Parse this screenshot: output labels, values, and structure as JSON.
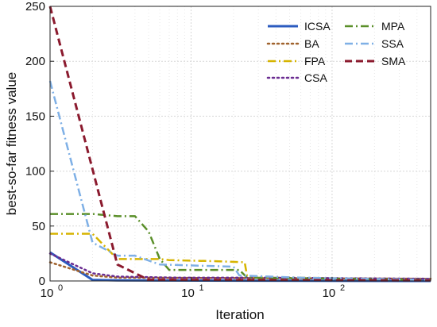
{
  "chart_data": {
    "type": "line",
    "xlabel": "Iteration",
    "ylabel": "best-so-far fitness value",
    "xscale": "log",
    "xlim": [
      1,
      500
    ],
    "ylim": [
      0,
      250
    ],
    "xticks": [
      {
        "value": 1,
        "base": "10",
        "exp": "0"
      },
      {
        "value": 10,
        "base": "10",
        "exp": "1"
      },
      {
        "value": 100,
        "base": "10",
        "exp": "2"
      }
    ],
    "yticks": [
      0,
      50,
      100,
      150,
      200,
      250
    ],
    "grid": true,
    "legend_position": "top-right",
    "series": [
      {
        "name": "ICSA",
        "color": "#2b5bbf",
        "dash": "solid",
        "width": 3,
        "points": [
          [
            1,
            26
          ],
          [
            2,
            1
          ],
          [
            3,
            0.5
          ],
          [
            500,
            0
          ]
        ]
      },
      {
        "name": "BA",
        "color": "#a0622d",
        "dash": "dot",
        "width": 2.5,
        "points": [
          [
            1,
            17
          ],
          [
            2,
            5
          ],
          [
            3,
            3
          ],
          [
            500,
            2
          ]
        ]
      },
      {
        "name": "FPA",
        "color": "#d6b400",
        "dash": "dashdot",
        "width": 2.5,
        "points": [
          [
            1,
            43
          ],
          [
            2,
            43
          ],
          [
            3,
            20
          ],
          [
            6,
            20
          ],
          [
            7,
            19
          ],
          [
            15,
            18
          ],
          [
            24,
            17
          ],
          [
            25,
            4
          ],
          [
            60,
            3
          ],
          [
            500,
            1
          ]
        ]
      },
      {
        "name": "CSA",
        "color": "#6a2c91",
        "dash": "dot",
        "width": 2.5,
        "points": [
          [
            1,
            25
          ],
          [
            2,
            7
          ],
          [
            3,
            4
          ],
          [
            8,
            3
          ],
          [
            30,
            3
          ],
          [
            500,
            2
          ]
        ]
      },
      {
        "name": "MPA",
        "color": "#5a8f29",
        "dash": "dashdot",
        "width": 2.5,
        "points": [
          [
            1,
            61
          ],
          [
            2,
            61
          ],
          [
            3,
            59
          ],
          [
            4,
            59
          ],
          [
            5,
            45
          ],
          [
            6,
            20
          ],
          [
            7,
            10
          ],
          [
            22,
            10
          ],
          [
            25,
            3
          ],
          [
            500,
            1
          ]
        ]
      },
      {
        "name": "SSA",
        "color": "#7fb0e6",
        "dash": "dashdot",
        "width": 2.5,
        "points": [
          [
            1,
            182
          ],
          [
            2,
            35
          ],
          [
            3,
            23
          ],
          [
            4,
            23
          ],
          [
            6,
            15
          ],
          [
            20,
            13
          ],
          [
            22,
            5
          ],
          [
            60,
            3
          ],
          [
            500,
            1
          ]
        ]
      },
      {
        "name": "SMA",
        "color": "#8b1a2e",
        "dash": "dash",
        "width": 3,
        "points": [
          [
            1,
            250
          ],
          [
            3,
            15
          ],
          [
            5,
            1
          ],
          [
            500,
            0.5
          ]
        ]
      }
    ]
  }
}
